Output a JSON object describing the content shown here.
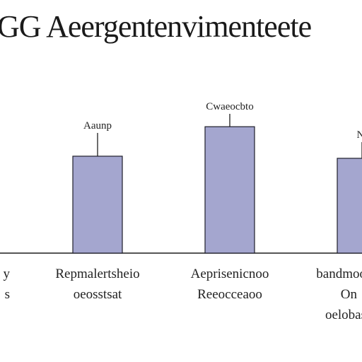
{
  "chart_data": {
    "type": "bar",
    "title": "GG Aeergentenvimenteete",
    "categories": [
      [
        "y",
        "s"
      ],
      [
        "Repmalertsheio",
        "oeosstsat"
      ],
      [
        "Aeprisenicnoo",
        "Reeocceaoo"
      ],
      [
        "bandmoo",
        "On",
        "oelobas"
      ]
    ],
    "values": [
      null,
      46,
      60,
      45
    ],
    "annotations": [
      null,
      "Aaunp",
      "Cwaeocbto",
      "Nl"
    ],
    "ylim": [
      0,
      100
    ],
    "grid": false,
    "colors": {
      "bar": "#a4a6cf",
      "bar_edge": "#1e1e2a",
      "axis": "#1e1e1e",
      "text": "#222222"
    }
  }
}
